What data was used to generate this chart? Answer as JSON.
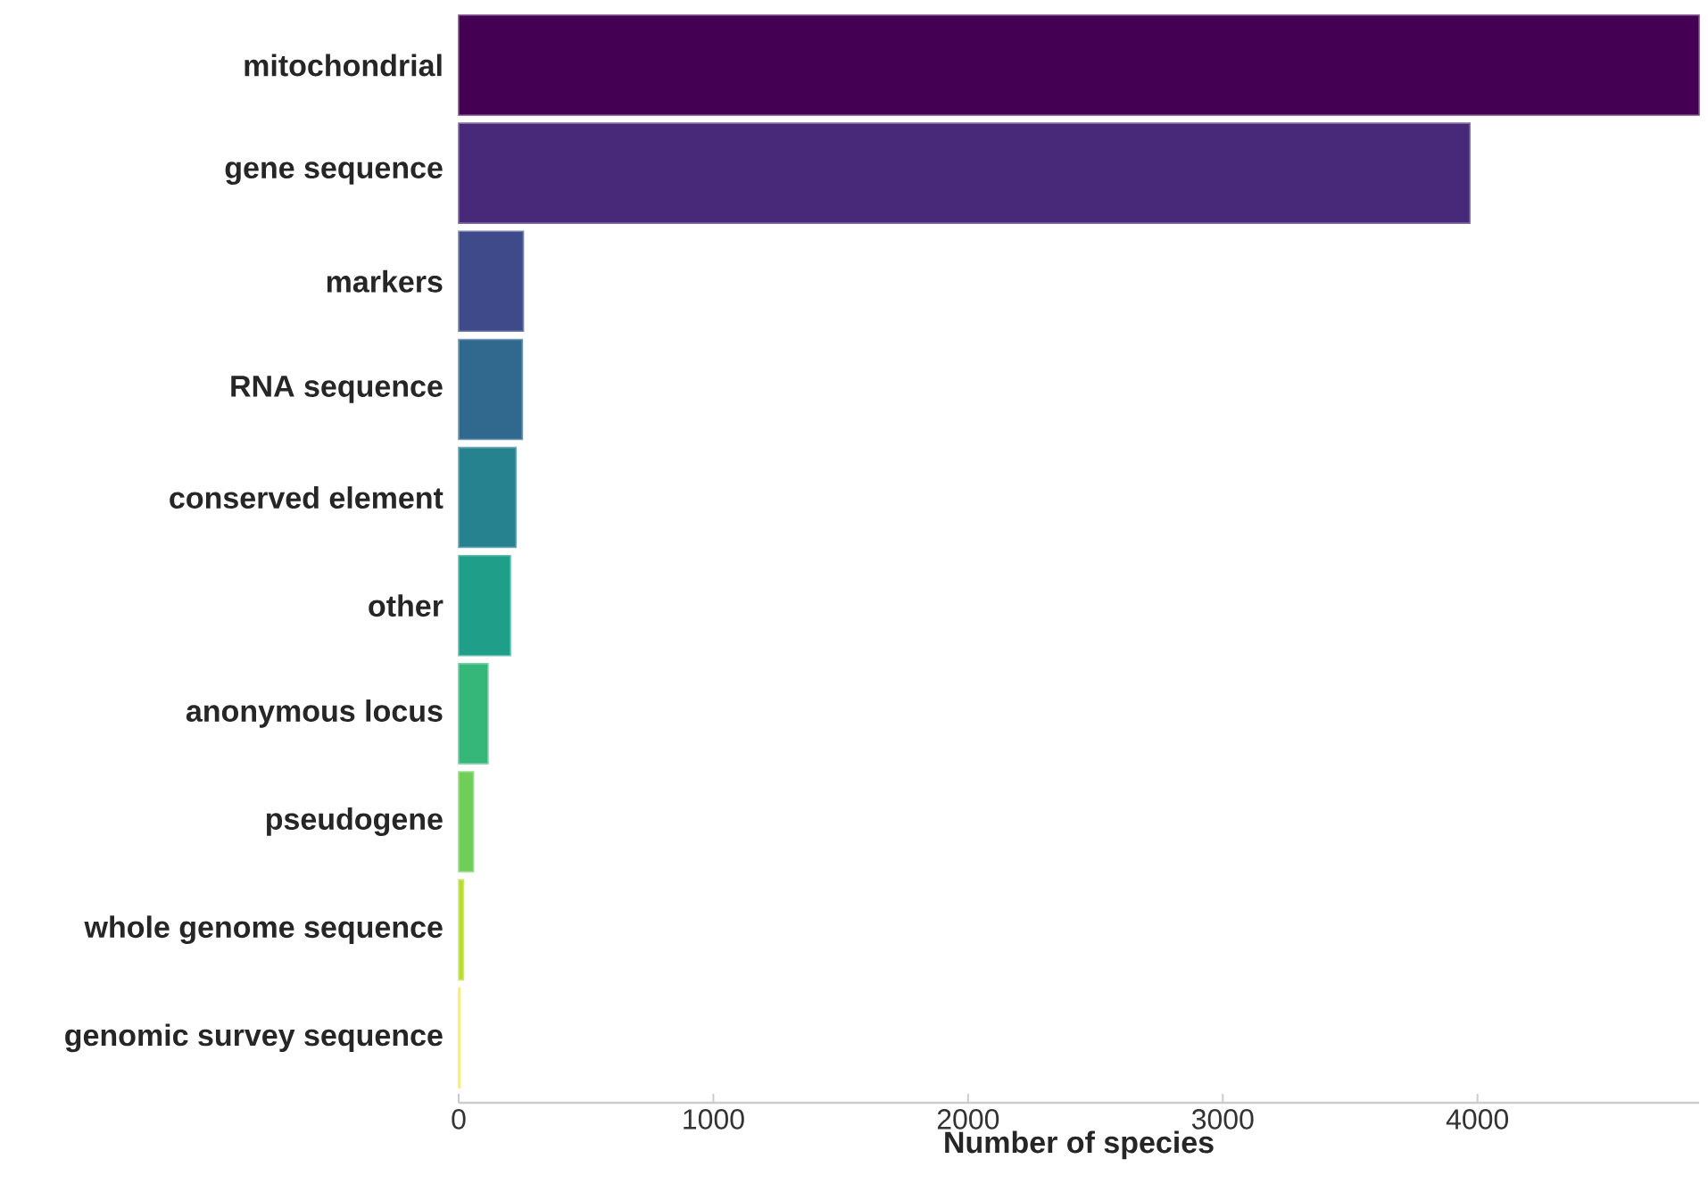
{
  "chart_data": {
    "type": "bar",
    "orientation": "horizontal",
    "xlabel": "Number of species",
    "categories": [
      "mitochondrial",
      "gene sequence",
      "markers",
      "RNA sequence",
      "conserved element",
      "other",
      "anonymous locus",
      "pseudogene",
      "whole genome sequence",
      "genomic survey sequence"
    ],
    "values": [
      4870,
      3970,
      254,
      250,
      225,
      203,
      115,
      58,
      19,
      5
    ],
    "colors": [
      "#440154",
      "#482878",
      "#3e4a89",
      "#31688e",
      "#26828e",
      "#1f9e89",
      "#35b779",
      "#6ece58",
      "#b5de2b",
      "#fde725"
    ],
    "xlim": [
      0,
      4870
    ],
    "xticks": [
      0,
      1000,
      2000,
      3000,
      4000
    ],
    "grid": false
  }
}
